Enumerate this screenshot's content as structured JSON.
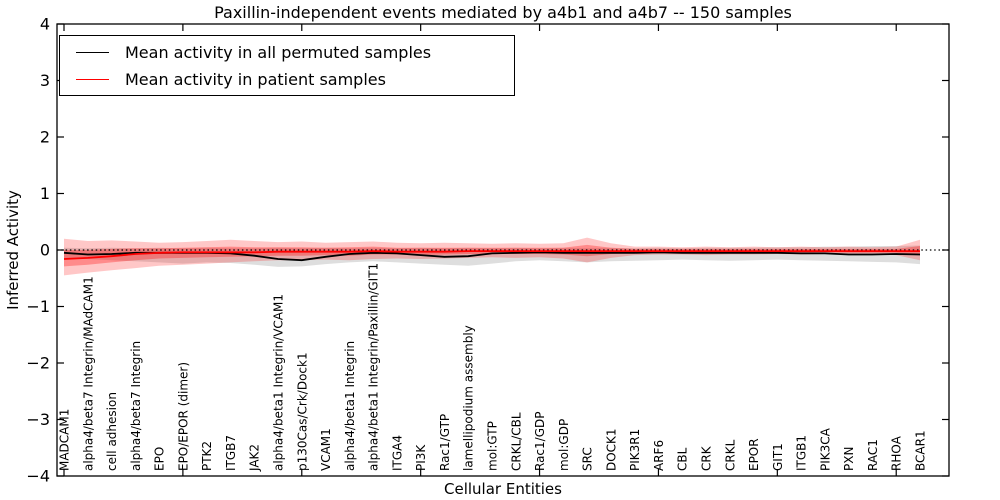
{
  "title": "Paxillin-independent events mediated by a4b1 and a4b7 -- 150 samples",
  "axes": {
    "ylabel": "Inferred Activity",
    "xlabel": "Cellular Entities",
    "y_ticks": [
      "4",
      "3",
      "2",
      "1",
      "0",
      "−1",
      "−2",
      "−3",
      "−4"
    ],
    "ylim": [
      -4,
      4
    ]
  },
  "legend": {
    "position": "upper-left",
    "items": [
      {
        "label": "Mean activity in all permuted samples",
        "color": "#000000"
      },
      {
        "label": "Mean activity in patient samples",
        "color": "#ff0000"
      }
    ]
  },
  "colors": {
    "permuted_line": "#000000",
    "patient_line": "#ff0000",
    "permuted_band": "rgba(0,0,0,0.13)",
    "patient_band_outer": "rgba(255,0,0,0.22)",
    "patient_band_inner": "rgba(255,0,0,0.30)",
    "frame": "#000000",
    "background": "#ffffff"
  },
  "chart_data": {
    "type": "line",
    "title": "Paxillin-independent events mediated by a4b1 and a4b7 -- 150 samples",
    "xlabel": "Cellular Entities",
    "ylabel": "Inferred Activity",
    "ylim": [
      -4,
      4
    ],
    "grid": false,
    "zero_line_value": 0,
    "zero_line_style": "dotted",
    "x_tick_indices": [
      0,
      5,
      10,
      15,
      20,
      25,
      30,
      35
    ],
    "categories": [
      "MADCAM1",
      "alpha4/beta7 Integrin/MAdCAM1",
      "cell adhesion",
      "alpha4/beta7 Integrin",
      "EPO",
      "EPO/EPOR (dimer)",
      "PTK2",
      "ITGB7",
      "JAK2",
      "alpha4/beta1 Integrin/VCAM1",
      "p130Cas/Crk/Dock1",
      "VCAM1",
      "alpha4/beta1 Integrin",
      "alpha4/beta1 Integrin/Paxillin/GIT1",
      "ITGA4",
      "PI3K",
      "Rac1/GTP",
      "lamellipodium assembly",
      "mol:GTP",
      "CRKL/CBL",
      "Rac1/GDP",
      "mol:GDP",
      "SRC",
      "DOCK1",
      "PIK3R1",
      "ARF6",
      "CBL",
      "CRK",
      "CRKL",
      "EPOR",
      "GIT1",
      "ITGB1",
      "PIK3CA",
      "PXN",
      "RAC1",
      "RHOA",
      "BCAR1"
    ],
    "series": [
      {
        "name": "Mean activity in all permuted samples",
        "color": "#000000",
        "values": [
          -0.05,
          -0.08,
          -0.07,
          -0.05,
          -0.05,
          -0.05,
          -0.05,
          -0.06,
          -0.1,
          -0.16,
          -0.18,
          -0.12,
          -0.07,
          -0.05,
          -0.06,
          -0.09,
          -0.12,
          -0.11,
          -0.06,
          -0.05,
          -0.04,
          -0.05,
          -0.05,
          -0.05,
          -0.05,
          -0.04,
          -0.05,
          -0.05,
          -0.05,
          -0.05,
          -0.05,
          -0.06,
          -0.06,
          -0.08,
          -0.08,
          -0.07,
          -0.08
        ]
      },
      {
        "name": "Mean activity in patient samples",
        "color": "#ff0000",
        "values": [
          -0.16,
          -0.14,
          -0.11,
          -0.07,
          -0.05,
          -0.04,
          -0.04,
          -0.04,
          -0.04,
          -0.03,
          -0.03,
          -0.03,
          -0.03,
          -0.02,
          -0.03,
          -0.03,
          -0.03,
          -0.02,
          -0.02,
          -0.02,
          -0.02,
          -0.02,
          -0.02,
          -0.02,
          -0.02,
          -0.02,
          -0.02,
          -0.02,
          -0.02,
          -0.02,
          -0.02,
          -0.02,
          -0.02,
          -0.02,
          -0.02,
          -0.02,
          -0.02
        ]
      }
    ],
    "bands": [
      {
        "name": "permuted-sample-range",
        "color": "rgba(0,0,0,0.13)",
        "upper": [
          0.04,
          0.03,
          0.04,
          0.03,
          0.04,
          0.03,
          0.04,
          0.03,
          0.03,
          0.04,
          0.03,
          0.04,
          0.03,
          0.04,
          0.03,
          0.04,
          0.03,
          0.04,
          0.03,
          0.04,
          0.03,
          0.04,
          0.03,
          0.04,
          0.03,
          0.04,
          0.03,
          0.04,
          0.04,
          0.04,
          0.05,
          0.05,
          0.06,
          0.06,
          0.07,
          0.07,
          0.08
        ],
        "lower": [
          -0.14,
          -0.16,
          -0.18,
          -0.2,
          -0.22,
          -0.24,
          -0.22,
          -0.23,
          -0.26,
          -0.3,
          -0.29,
          -0.25,
          -0.22,
          -0.2,
          -0.22,
          -0.24,
          -0.26,
          -0.28,
          -0.24,
          -0.2,
          -0.18,
          -0.2,
          -0.22,
          -0.2,
          -0.19,
          -0.18,
          -0.17,
          -0.18,
          -0.19,
          -0.18,
          -0.17,
          -0.18,
          -0.19,
          -0.2,
          -0.21,
          -0.22,
          -0.25
        ]
      },
      {
        "name": "patient-sample-range-outer",
        "color": "rgba(255,0,0,0.22)",
        "upper": [
          0.2,
          0.16,
          0.17,
          0.15,
          0.13,
          0.14,
          0.16,
          0.18,
          0.16,
          0.14,
          0.15,
          0.13,
          0.14,
          0.15,
          0.13,
          0.12,
          0.13,
          0.12,
          0.11,
          0.12,
          0.11,
          0.12,
          0.22,
          0.12,
          0.06,
          0.06,
          0.05,
          0.06,
          0.05,
          0.06,
          0.05,
          0.06,
          0.05,
          0.06,
          0.05,
          0.06,
          0.18
        ],
        "lower": [
          -0.45,
          -0.4,
          -0.36,
          -0.32,
          -0.28,
          -0.26,
          -0.24,
          -0.22,
          -0.2,
          -0.18,
          -0.18,
          -0.17,
          -0.18,
          -0.16,
          -0.15,
          -0.16,
          -0.15,
          -0.14,
          -0.13,
          -0.14,
          -0.13,
          -0.15,
          -0.22,
          -0.14,
          -0.09,
          -0.08,
          -0.08,
          -0.09,
          -0.08,
          -0.08,
          -0.07,
          -0.08,
          -0.07,
          -0.08,
          -0.08,
          -0.09,
          -0.18
        ]
      },
      {
        "name": "patient-sample-range-inner",
        "color": "rgba(255,0,0,0.30)",
        "upper": [
          0.0,
          0.0,
          0.02,
          0.03,
          0.03,
          0.04,
          0.05,
          0.06,
          0.05,
          0.05,
          0.05,
          0.04,
          0.05,
          0.06,
          0.04,
          0.04,
          0.04,
          0.04,
          0.04,
          0.04,
          0.04,
          0.04,
          0.09,
          0.04,
          0.02,
          0.02,
          0.02,
          0.02,
          0.02,
          0.02,
          0.02,
          0.02,
          0.02,
          0.02,
          0.02,
          0.02,
          0.07
        ],
        "lower": [
          -0.29,
          -0.26,
          -0.22,
          -0.18,
          -0.15,
          -0.14,
          -0.13,
          -0.12,
          -0.11,
          -0.1,
          -0.1,
          -0.09,
          -0.1,
          -0.08,
          -0.08,
          -0.09,
          -0.08,
          -0.07,
          -0.07,
          -0.07,
          -0.07,
          -0.08,
          -0.11,
          -0.07,
          -0.05,
          -0.05,
          -0.05,
          -0.05,
          -0.05,
          -0.05,
          -0.04,
          -0.05,
          -0.04,
          -0.05,
          -0.05,
          -0.05,
          -0.09
        ]
      }
    ]
  }
}
